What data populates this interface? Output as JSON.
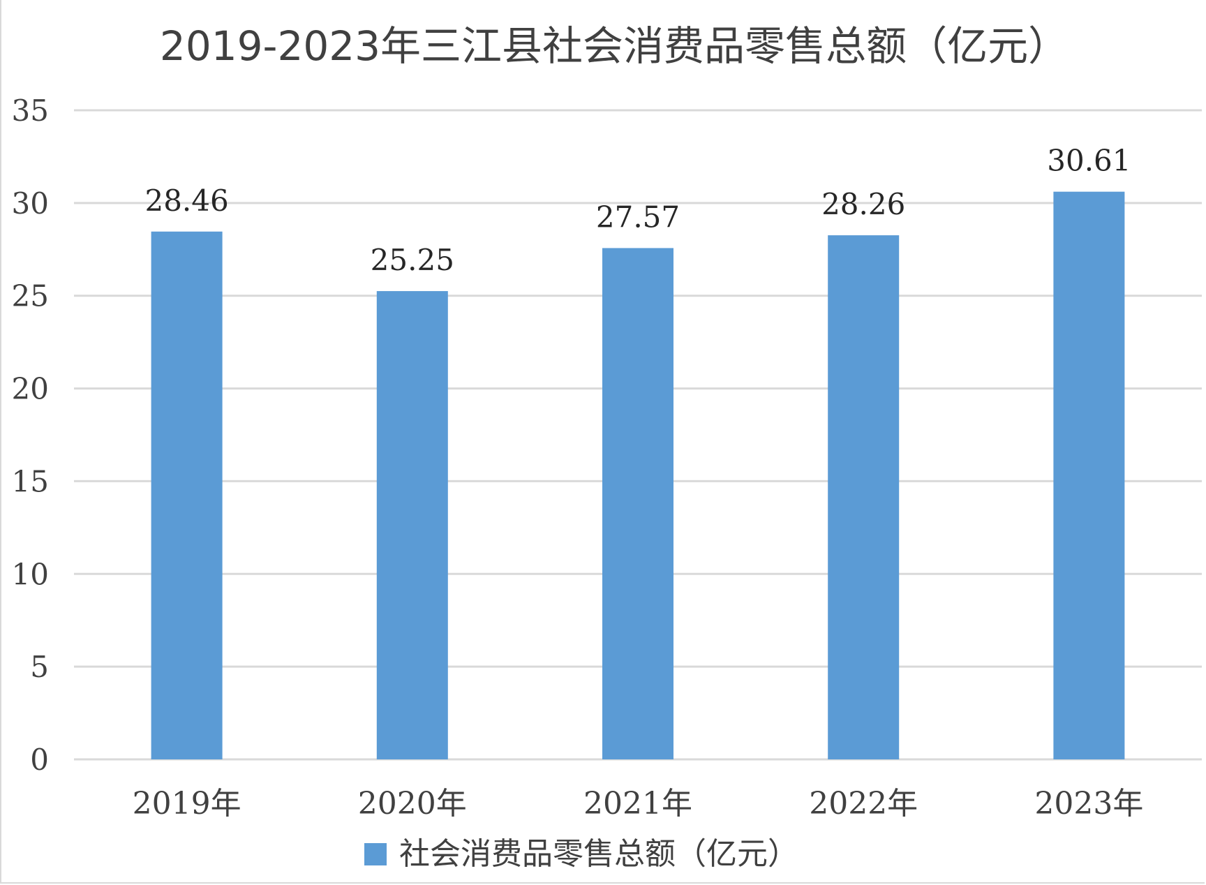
{
  "chart_data": {
    "type": "bar",
    "title": "2019-2023年三江县社会消费品零售总额（亿元）",
    "categories": [
      "2019年",
      "2020年",
      "2021年",
      "2022年",
      "2023年"
    ],
    "series": [
      {
        "name": "社会消费品零售总额（亿元）",
        "values": [
          28.46,
          25.25,
          27.57,
          28.26,
          30.61
        ],
        "data_labels": [
          "28.46",
          "25.25",
          "27.57",
          "28.26",
          "30.61"
        ],
        "color": "#5b9bd5"
      }
    ],
    "ylim": [
      0,
      35
    ],
    "yticks": [
      0,
      5,
      10,
      15,
      20,
      25,
      30,
      35
    ],
    "grid": true,
    "legend": "bottom"
  }
}
